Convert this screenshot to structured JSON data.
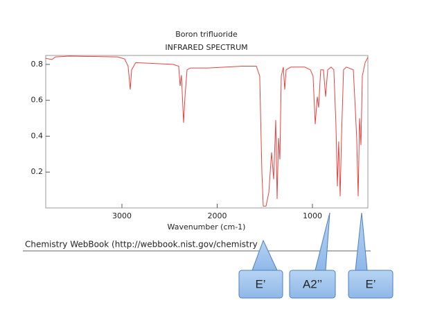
{
  "chart_data": {
    "type": "line",
    "title": "Boron trifluoride",
    "subtitle": "INFRARED SPECTRUM",
    "x_label": "Wavenumber (cm-1)",
    "source": "Chemistry WebBook (http://webbook.nist.gov/chemistry",
    "annotations": [
      "E’",
      "A2’’",
      "E’"
    ],
    "color": "#e8413f",
    "xlim": [
      3800,
      418
    ],
    "ylim": [
      0,
      0.85
    ],
    "xticks": [
      3000,
      2000,
      1000
    ],
    "yticks": [
      0.2,
      0.4,
      0.6,
      0.8
    ],
    "x": [
      3800,
      3735,
      3698,
      3553,
      3044,
      2971,
      2935,
      2913,
      2898,
      2855,
      2462,
      2404,
      2389,
      2375,
      2353,
      2338,
      2316,
      2280,
      2098,
      1735,
      1589,
      1553,
      1531,
      1516,
      1487,
      1458,
      1429,
      1407,
      1385,
      1371,
      1356,
      1342,
      1327,
      1305,
      1291,
      1276,
      1225,
      1080,
      1022,
      993,
      971,
      949,
      935,
      913,
      884,
      862,
      840,
      804,
      775,
      753,
      738,
      724,
      709,
      695,
      673,
      644,
      571,
      549,
      535,
      520,
      505,
      491,
      476,
      447,
      418
    ],
    "values": [
      0.834,
      0.827,
      0.842,
      0.846,
      0.842,
      0.83,
      0.79,
      0.66,
      0.77,
      0.81,
      0.8,
      0.79,
      0.68,
      0.74,
      0.475,
      0.62,
      0.77,
      0.78,
      0.78,
      0.79,
      0.79,
      0.735,
      0.2,
      0.01,
      0.01,
      0.085,
      0.31,
      0.16,
      0.49,
      0.05,
      0.39,
      0.27,
      0.735,
      0.785,
      0.66,
      0.77,
      0.785,
      0.785,
      0.77,
      0.735,
      0.467,
      0.62,
      0.56,
      0.77,
      0.77,
      0.62,
      0.77,
      0.785,
      0.77,
      0.467,
      0.12,
      0.37,
      0.065,
      0.39,
      0.77,
      0.785,
      0.77,
      0.54,
      0.39,
      0.065,
      0.5,
      0.35,
      0.735,
      0.81,
      0.84
    ]
  }
}
